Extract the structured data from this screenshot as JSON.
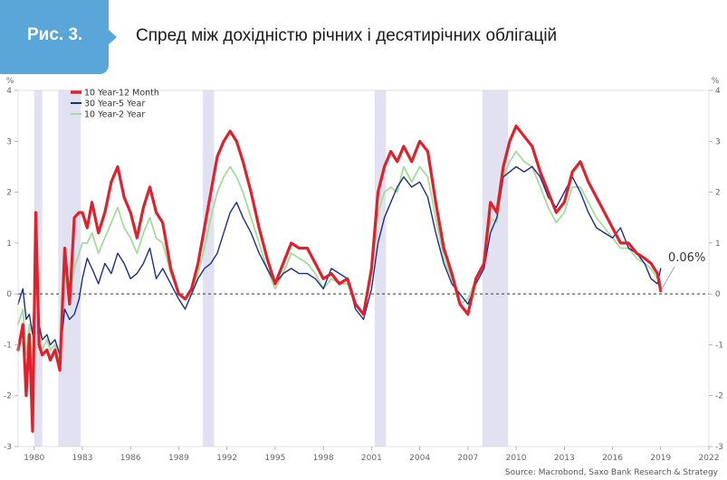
{
  "figure": {
    "label": "Рис. 3.",
    "title": "Спред між дохідністю річних і десятирічних облігацій",
    "accent_color": "#5aa6d8"
  },
  "chart_data": {
    "type": "line",
    "title": "Спред між дохідністю річних і десятирічних облігацій",
    "ylabel": "%",
    "ylim": [
      -3,
      4
    ],
    "yticks": [
      -3,
      -2,
      -1,
      0,
      1,
      2,
      3,
      4
    ],
    "xlim": [
      1979,
      2022
    ],
    "xticks": [
      1980,
      1983,
      1986,
      1989,
      1992,
      1995,
      1998,
      2001,
      2004,
      2007,
      2010,
      2013,
      2016,
      2019,
      2022
    ],
    "legend_position": "top-left",
    "source": "Source: Macrobond, Saxo Bank Research & Strategy",
    "annotation": {
      "text": "0.06%",
      "x": 2019.0,
      "y": 0.06
    },
    "recessions": [
      [
        1980.0,
        1980.5
      ],
      [
        1981.5,
        1982.9
      ],
      [
        1990.5,
        1991.2
      ],
      [
        2001.2,
        2001.9
      ],
      [
        2007.9,
        2009.5
      ]
    ],
    "series": [
      {
        "name": "10 Year-12 Month",
        "color": "#e0212b",
        "x": [
          1979.0,
          1979.3,
          1979.5,
          1979.7,
          1979.9,
          1980.1,
          1980.3,
          1980.5,
          1980.8,
          1981.0,
          1981.3,
          1981.6,
          1981.9,
          1982.2,
          1982.5,
          1982.8,
          1983.0,
          1983.3,
          1983.6,
          1984.0,
          1984.4,
          1984.8,
          1985.2,
          1985.6,
          1986.0,
          1986.4,
          1986.8,
          1987.2,
          1987.6,
          1988.0,
          1988.5,
          1989.0,
          1989.4,
          1989.8,
          1990.2,
          1990.6,
          1991.0,
          1991.4,
          1991.8,
          1992.2,
          1992.6,
          1993.0,
          1993.5,
          1994.0,
          1994.5,
          1995.0,
          1995.5,
          1996.0,
          1996.5,
          1997.0,
          1997.5,
          1998.0,
          1998.5,
          1999.0,
          1999.5,
          2000.0,
          2000.5,
          2001.0,
          2001.4,
          2001.8,
          2002.2,
          2002.6,
          2003.0,
          2003.5,
          2004.0,
          2004.5,
          2005.0,
          2005.5,
          2006.0,
          2006.5,
          2007.0,
          2007.5,
          2008.0,
          2008.4,
          2008.8,
          2009.2,
          2009.6,
          2010.0,
          2010.5,
          2011.0,
          2011.5,
          2012.0,
          2012.5,
          2013.0,
          2013.5,
          2014.0,
          2014.5,
          2015.0,
          2015.5,
          2016.0,
          2016.5,
          2017.0,
          2017.5,
          2018.0,
          2018.4,
          2018.8,
          2019.0
        ],
        "values": [
          -1.1,
          -0.6,
          -2.0,
          -0.8,
          -2.7,
          1.6,
          -1.0,
          -1.2,
          -1.1,
          -1.3,
          -1.1,
          -1.5,
          0.9,
          -0.2,
          1.5,
          1.6,
          1.6,
          1.3,
          1.8,
          1.2,
          1.6,
          2.2,
          2.5,
          1.9,
          1.6,
          1.1,
          1.7,
          2.1,
          1.6,
          1.4,
          0.5,
          0.0,
          -0.1,
          0.1,
          0.6,
          1.3,
          2.0,
          2.7,
          3.0,
          3.2,
          3.0,
          2.6,
          2.0,
          1.3,
          0.7,
          0.2,
          0.6,
          1.0,
          0.9,
          0.9,
          0.6,
          0.3,
          0.4,
          0.2,
          0.3,
          -0.2,
          -0.4,
          0.5,
          2.0,
          2.5,
          2.8,
          2.6,
          2.9,
          2.6,
          3.0,
          2.8,
          1.8,
          0.9,
          0.4,
          -0.2,
          -0.4,
          0.3,
          0.6,
          1.8,
          1.6,
          2.5,
          3.0,
          3.3,
          3.1,
          2.9,
          2.4,
          2.0,
          1.6,
          1.8,
          2.4,
          2.6,
          2.2,
          1.9,
          1.6,
          1.3,
          1.0,
          1.0,
          0.8,
          0.7,
          0.6,
          0.4,
          0.06
        ]
      },
      {
        "name": "30 Year-5 Year",
        "color": "#1c2e8a",
        "x": [
          1979.0,
          1979.3,
          1979.5,
          1979.7,
          1979.9,
          1980.1,
          1980.3,
          1980.5,
          1980.8,
          1981.0,
          1981.3,
          1981.6,
          1981.9,
          1982.2,
          1982.5,
          1982.8,
          1983.0,
          1983.3,
          1983.6,
          1984.0,
          1984.4,
          1984.8,
          1985.2,
          1985.6,
          1986.0,
          1986.4,
          1986.8,
          1987.2,
          1987.6,
          1988.0,
          1988.5,
          1989.0,
          1989.4,
          1989.8,
          1990.2,
          1990.6,
          1991.0,
          1991.4,
          1991.8,
          1992.2,
          1992.6,
          1993.0,
          1993.5,
          1994.0,
          1994.5,
          1995.0,
          1995.5,
          1996.0,
          1996.5,
          1997.0,
          1997.5,
          1998.0,
          1998.5,
          1999.0,
          1999.5,
          2000.0,
          2000.5,
          2001.0,
          2001.4,
          2001.8,
          2002.2,
          2002.6,
          2003.0,
          2003.5,
          2004.0,
          2004.5,
          2005.0,
          2005.5,
          2006.0,
          2006.5,
          2007.0,
          2007.5,
          2008.0,
          2008.4,
          2008.8,
          2009.2,
          2009.6,
          2010.0,
          2010.5,
          2011.0,
          2011.5,
          2012.0,
          2012.5,
          2013.0,
          2013.5,
          2014.0,
          2014.5,
          2015.0,
          2015.5,
          2016.0,
          2016.5,
          2017.0,
          2017.5,
          2018.0,
          2018.4,
          2018.8,
          2019.0
        ],
        "values": [
          -0.2,
          0.1,
          -0.5,
          -0.4,
          -0.8,
          0.5,
          -0.6,
          -0.9,
          -0.8,
          -1.0,
          -0.9,
          -1.2,
          -0.3,
          -0.5,
          -0.4,
          -0.1,
          0.3,
          0.7,
          0.5,
          0.2,
          0.6,
          0.4,
          0.8,
          0.6,
          0.3,
          0.4,
          0.6,
          0.9,
          0.3,
          0.5,
          0.2,
          -0.1,
          -0.3,
          0.0,
          0.3,
          0.5,
          0.6,
          0.8,
          1.2,
          1.6,
          1.8,
          1.5,
          1.2,
          0.8,
          0.5,
          0.2,
          0.4,
          0.5,
          0.4,
          0.4,
          0.3,
          0.1,
          0.5,
          0.4,
          0.3,
          -0.3,
          -0.5,
          0.1,
          1.0,
          1.5,
          1.8,
          2.1,
          2.3,
          2.1,
          2.2,
          1.9,
          1.2,
          0.6,
          0.2,
          0.0,
          -0.2,
          0.2,
          0.5,
          1.2,
          1.5,
          2.3,
          2.4,
          2.5,
          2.4,
          2.5,
          2.3,
          1.9,
          1.7,
          2.0,
          2.3,
          2.0,
          1.6,
          1.3,
          1.2,
          1.1,
          1.3,
          0.9,
          0.8,
          0.6,
          0.3,
          0.2,
          0.5
        ]
      },
      {
        "name": "10 Year-2 Year",
        "color": "#a3dc9b",
        "x": [
          1979.0,
          1979.3,
          1979.5,
          1979.7,
          1979.9,
          1980.1,
          1980.3,
          1980.5,
          1980.8,
          1981.0,
          1981.3,
          1981.6,
          1981.9,
          1982.2,
          1982.5,
          1982.8,
          1983.0,
          1983.3,
          1983.6,
          1984.0,
          1984.4,
          1984.8,
          1985.2,
          1985.6,
          1986.0,
          1986.4,
          1986.8,
          1987.2,
          1987.6,
          1988.0,
          1988.5,
          1989.0,
          1989.4,
          1989.8,
          1990.2,
          1990.6,
          1991.0,
          1991.4,
          1991.8,
          1992.2,
          1992.6,
          1993.0,
          1993.5,
          1994.0,
          1994.5,
          1995.0,
          1995.5,
          1996.0,
          1996.5,
          1997.0,
          1997.5,
          1998.0,
          1998.5,
          1999.0,
          1999.5,
          2000.0,
          2000.5,
          2001.0,
          2001.4,
          2001.8,
          2002.2,
          2002.6,
          2003.0,
          2003.5,
          2004.0,
          2004.5,
          2005.0,
          2005.5,
          2006.0,
          2006.5,
          2007.0,
          2007.5,
          2008.0,
          2008.4,
          2008.8,
          2009.2,
          2009.6,
          2010.0,
          2010.5,
          2011.0,
          2011.5,
          2012.0,
          2012.5,
          2013.0,
          2013.5,
          2014.0,
          2014.5,
          2015.0,
          2015.5,
          2016.0,
          2016.5,
          2017.0,
          2017.5,
          2018.0,
          2018.4,
          2018.8,
          2019.0
        ],
        "values": [
          -0.6,
          -0.3,
          -1.2,
          -0.6,
          -1.5,
          0.9,
          -0.8,
          -1.1,
          -0.9,
          -1.1,
          -1.0,
          -1.3,
          0.4,
          -0.2,
          0.5,
          0.8,
          1.0,
          1.0,
          1.2,
          0.8,
          1.1,
          1.4,
          1.7,
          1.3,
          1.1,
          0.8,
          1.2,
          1.5,
          1.1,
          1.0,
          0.4,
          0.0,
          -0.1,
          0.0,
          0.4,
          0.9,
          1.5,
          2.0,
          2.3,
          2.5,
          2.3,
          2.0,
          1.5,
          1.0,
          0.5,
          0.1,
          0.4,
          0.8,
          0.7,
          0.6,
          0.4,
          0.1,
          0.3,
          0.2,
          0.2,
          -0.2,
          -0.4,
          0.4,
          1.6,
          2.0,
          2.1,
          2.0,
          2.5,
          2.2,
          2.5,
          2.3,
          1.5,
          0.7,
          0.3,
          -0.2,
          -0.1,
          0.3,
          0.5,
          1.5,
          1.4,
          2.3,
          2.6,
          2.8,
          2.6,
          2.5,
          2.1,
          1.7,
          1.4,
          1.6,
          2.1,
          2.1,
          1.8,
          1.5,
          1.3,
          1.1,
          0.9,
          0.9,
          0.7,
          0.6,
          0.5,
          0.3,
          0.2
        ]
      }
    ]
  }
}
